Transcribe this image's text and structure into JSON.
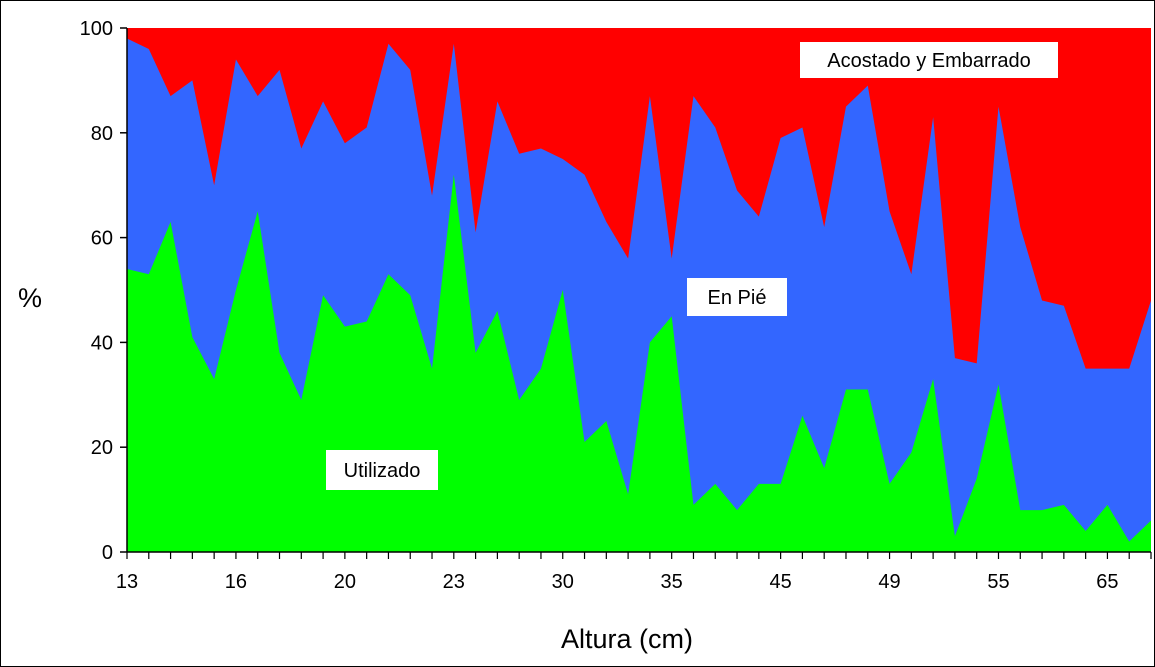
{
  "chart_data": {
    "type": "area",
    "stacked": true,
    "xlabel": "Altura (cm)",
    "ylabel": "%",
    "ylim": [
      0,
      100
    ],
    "y_ticks": [
      0,
      20,
      40,
      60,
      80,
      100
    ],
    "x_tick_labels": [
      "13",
      "16",
      "20",
      "23",
      "30",
      "35",
      "45",
      "49",
      "55",
      "65"
    ],
    "legend": "none",
    "grid": false,
    "series": [
      {
        "name": "Utilizado",
        "color": "#00ff00",
        "values": [
          54,
          53,
          63,
          41,
          33,
          50,
          65,
          38,
          29,
          49,
          43,
          44,
          53,
          49,
          35,
          72,
          38,
          46,
          29,
          35,
          50,
          21,
          25,
          11,
          40,
          45,
          9,
          13,
          8,
          13,
          13,
          26,
          16,
          31,
          31,
          13,
          19,
          33,
          3,
          14,
          32,
          8,
          8,
          9,
          4,
          9,
          2,
          6
        ]
      },
      {
        "name": "En Pié",
        "color": "#3366ff",
        "top": [
          98,
          96,
          87,
          90,
          70,
          94,
          87,
          92,
          77,
          86,
          78,
          81,
          97,
          92,
          68,
          97,
          61,
          86,
          76,
          77,
          75,
          72,
          63,
          56,
          87,
          56,
          87,
          81,
          69,
          64,
          79,
          81,
          62,
          85,
          89,
          65,
          53,
          83,
          37,
          36,
          85,
          62,
          48,
          47,
          35,
          35,
          35,
          48
        ]
      },
      {
        "name": "Acostado y Embarrado",
        "color": "#ff0000",
        "top_value": 100
      }
    ],
    "annotations": [
      "Acostado y Embarrado",
      "En Pié",
      "Utilizado"
    ]
  }
}
